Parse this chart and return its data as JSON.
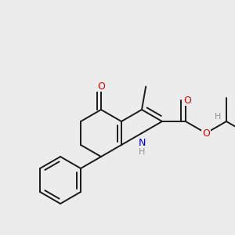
{
  "bg_color": "#ececec",
  "bond_color": "#1a1a1a",
  "bond_width": 1.4,
  "atom_colors": {
    "O": "#dd0000",
    "N": "#0000cc",
    "H_gray": "#909090"
  },
  "font_size": 9.0,
  "xlim": [
    0.0,
    3.0
  ],
  "ylim": [
    0.0,
    3.0
  ]
}
